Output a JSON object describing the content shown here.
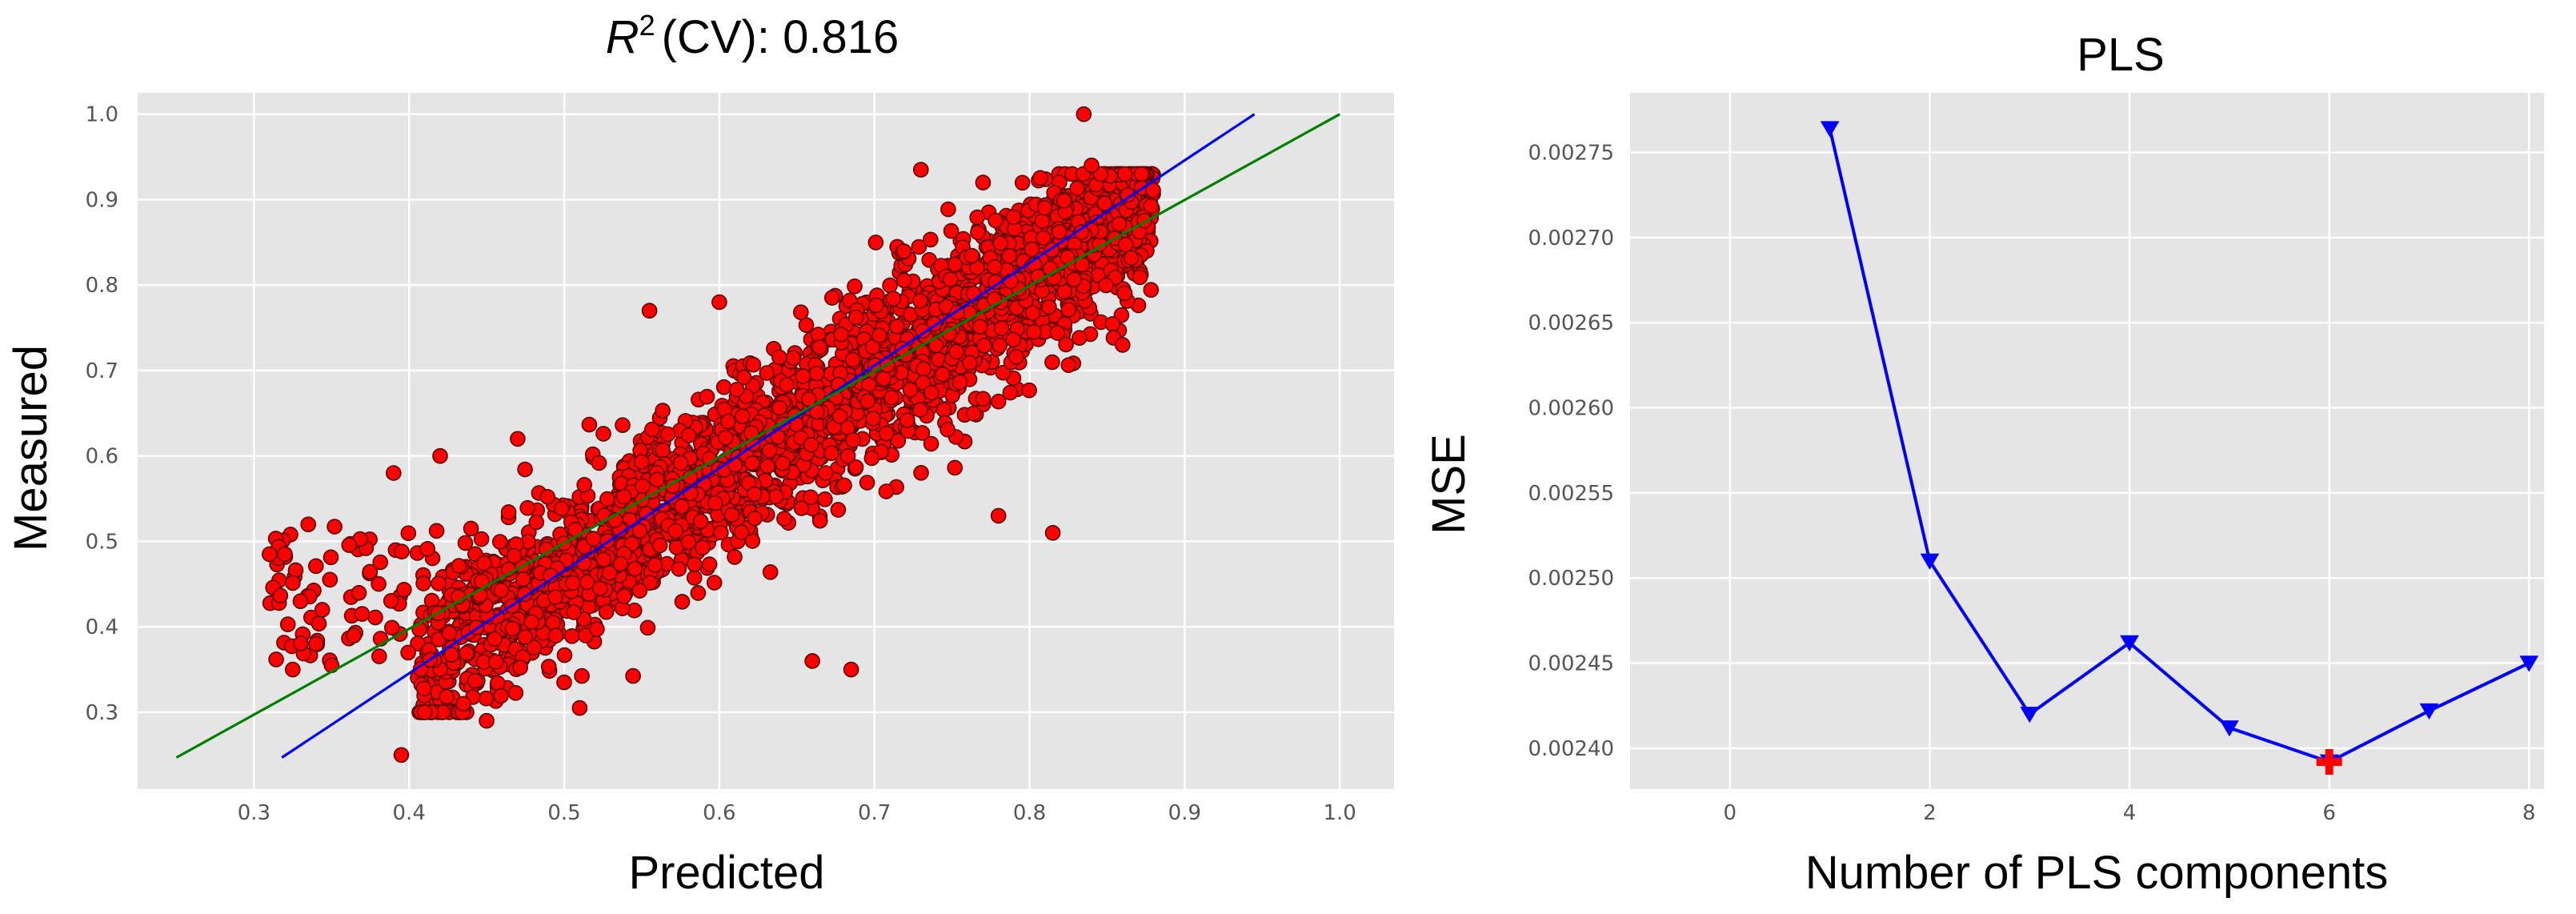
{
  "chart_data": [
    {
      "type": "scatter",
      "title": "(CV): 0.816",
      "title_symbol": "R",
      "title_superscript": "2",
      "xlabel": "Predicted",
      "ylabel": "Measured",
      "xlim": [
        0.225,
        1.035
      ],
      "ylim": [
        0.21,
        1.025
      ],
      "xticks": [
        "0.3",
        "0.4",
        "0.5",
        "0.6",
        "0.7",
        "0.8",
        "0.9",
        "1.0"
      ],
      "yticks": [
        "0.3",
        "0.4",
        "0.5",
        "0.6",
        "0.7",
        "0.8",
        "0.9",
        "1.0"
      ],
      "grid": true,
      "background": "#e5e5e5",
      "point_color": "#ff0000",
      "point_edge_color": "#5a0000",
      "approx_point_count": 2600,
      "point_cloud": {
        "x_range": [
          0.3,
          0.88
        ],
        "trend_slope": 1.16,
        "trend_intercept": -0.12,
        "scatter_sd": 0.05
      },
      "points": [
        {
          "x": 0.835,
          "y": 1.0
        },
        {
          "x": 0.31,
          "y": 0.485
        },
        {
          "x": 0.32,
          "y": 0.485
        },
        {
          "x": 0.33,
          "y": 0.43
        },
        {
          "x": 0.325,
          "y": 0.35
        },
        {
          "x": 0.34,
          "y": 0.38
        },
        {
          "x": 0.35,
          "y": 0.355
        },
        {
          "x": 0.39,
          "y": 0.58
        },
        {
          "x": 0.42,
          "y": 0.6
        },
        {
          "x": 0.395,
          "y": 0.25
        },
        {
          "x": 0.41,
          "y": 0.3
        },
        {
          "x": 0.435,
          "y": 0.31
        },
        {
          "x": 0.45,
          "y": 0.29
        },
        {
          "x": 0.51,
          "y": 0.305
        },
        {
          "x": 0.5,
          "y": 0.335
        },
        {
          "x": 0.66,
          "y": 0.36
        },
        {
          "x": 0.685,
          "y": 0.35
        },
        {
          "x": 0.815,
          "y": 0.51
        },
        {
          "x": 0.78,
          "y": 0.53
        },
        {
          "x": 0.73,
          "y": 0.935
        },
        {
          "x": 0.77,
          "y": 0.92
        },
        {
          "x": 0.84,
          "y": 0.94
        },
        {
          "x": 0.6,
          "y": 0.78
        },
        {
          "x": 0.555,
          "y": 0.77
        },
        {
          "x": 0.47,
          "y": 0.62
        },
        {
          "x": 0.86,
          "y": 0.73
        }
      ],
      "lines": [
        {
          "name": "",
          "color": "#0000ff",
          "x": [
            0.318,
            0.945
          ],
          "y": [
            0.247,
            1.0
          ]
        },
        {
          "name": "",
          "color": "#008000",
          "x": [
            0.25,
            1.0
          ],
          "y": [
            0.247,
            1.0
          ]
        }
      ]
    },
    {
      "type": "line",
      "title": "PLS",
      "xlabel": "Number of PLS components",
      "ylabel": "MSE",
      "xlim": [
        -1.0,
        8.15
      ],
      "ylim": [
        0.002376,
        0.002785
      ],
      "xticks": [
        "0",
        "2",
        "4",
        "6",
        "8"
      ],
      "yticks": [
        "0.00240",
        "0.00245",
        "0.00250",
        "0.00255",
        "0.00260",
        "0.00265",
        "0.00270",
        "0.00275"
      ],
      "grid": true,
      "background": "#e5e5e5",
      "series": [
        {
          "name": "",
          "color": "#0000ff",
          "marker": "triangle-down",
          "x": [
            1,
            2,
            3,
            4,
            5,
            6,
            7,
            8
          ],
          "y": [
            0.002764,
            0.00251,
            0.00242,
            0.002462,
            0.002412,
            0.002392,
            0.002422,
            0.00245
          ]
        }
      ],
      "minimum_marker": {
        "x": 6,
        "y": 0.002392,
        "color": "#ff0000",
        "marker": "plus"
      }
    }
  ]
}
